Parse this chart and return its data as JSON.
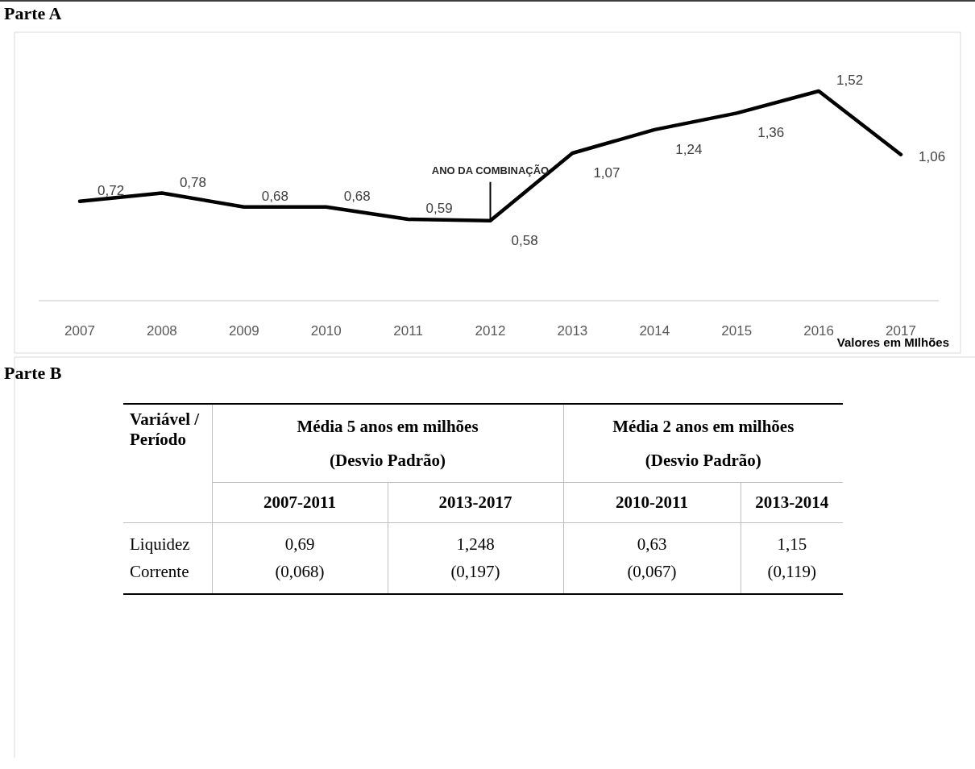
{
  "chart_data": [
    {
      "type": "line",
      "title": "Parte A",
      "categories": [
        "2007",
        "2008",
        "2009",
        "2010",
        "2011",
        "2012",
        "2013",
        "2014",
        "2015",
        "2016",
        "2017"
      ],
      "values": [
        0.72,
        0.78,
        0.68,
        0.68,
        0.59,
        0.58,
        1.07,
        1.24,
        1.36,
        1.52,
        1.06
      ],
      "color": "#000000",
      "value_labels": [
        "0,72",
        "0,78",
        "0,68",
        "0,68",
        "0,59",
        "0,58",
        "1,07",
        "1,24",
        "1,36",
        "1,52",
        "1,06"
      ],
      "marker": "none",
      "line_style": "solid",
      "annotations": [
        {
          "text": "ANO DA COMBINAÇÃO",
          "x": "2012",
          "y": 0.58
        },
        "Valores em MIlhões"
      ]
    },
    {
      "type": "other",
      "title": "Parte B",
      "annotations": [
        "Variável /\nPeríodo",
        "Média 5 anos em milhões\n(Desvio Padrão)",
        "Média 2 anos em milhões\n(Desvio Padrão)",
        "2007-2011",
        "2013-2017",
        "2010-2011",
        "2013-2014",
        "Liquidez\nCorrente",
        "0,69\n(0,068)",
        "1,248\n(0,197)",
        "0,63\n(0,067)",
        "1,15\n(0,119)"
      ]
    }
  ]
}
